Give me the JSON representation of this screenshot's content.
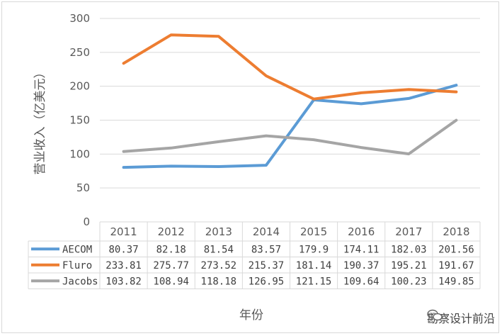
{
  "chart_data": {
    "type": "line",
    "title": "",
    "xlabel": "年份",
    "ylabel": "营业收入（亿美元）",
    "ylim": [
      0,
      300
    ],
    "yticks": [
      0,
      50,
      100,
      150,
      200,
      250,
      300
    ],
    "grid": true,
    "legend": "data-table",
    "categories": [
      "2011",
      "2012",
      "2013",
      "2014",
      "2015",
      "2016",
      "2017",
      "2018"
    ],
    "series": [
      {
        "name": "AECOM",
        "color": "#5b9bd5",
        "values": [
          80.37,
          82.18,
          81.54,
          83.57,
          179.9,
          174.11,
          182.03,
          201.56
        ],
        "labels": [
          "80.37",
          "82.18",
          "81.54",
          "83.57",
          "179.9",
          "174.11",
          "182.03",
          "201.56"
        ]
      },
      {
        "name": "Fluro",
        "color": "#ed7d31",
        "values": [
          233.81,
          275.77,
          273.52,
          215.37,
          181.14,
          190.37,
          195.21,
          191.67
        ],
        "labels": [
          "233.81",
          "275.77",
          "273.52",
          "215.37",
          "181.14",
          "190.37",
          "195.21",
          "191.67"
        ]
      },
      {
        "name": "Jacobs",
        "color": "#a5a5a5",
        "values": [
          103.82,
          108.94,
          118.18,
          126.95,
          121.15,
          109.64,
          100.23,
          149.85
        ],
        "labels": [
          "103.82",
          "108.94",
          "118.18",
          "126.95",
          "121.15",
          "109.64",
          "100.23",
          "149.85"
        ]
      }
    ]
  },
  "watermark": {
    "text": "勘察设计前沿",
    "icon": "chat-bubble-icon"
  }
}
